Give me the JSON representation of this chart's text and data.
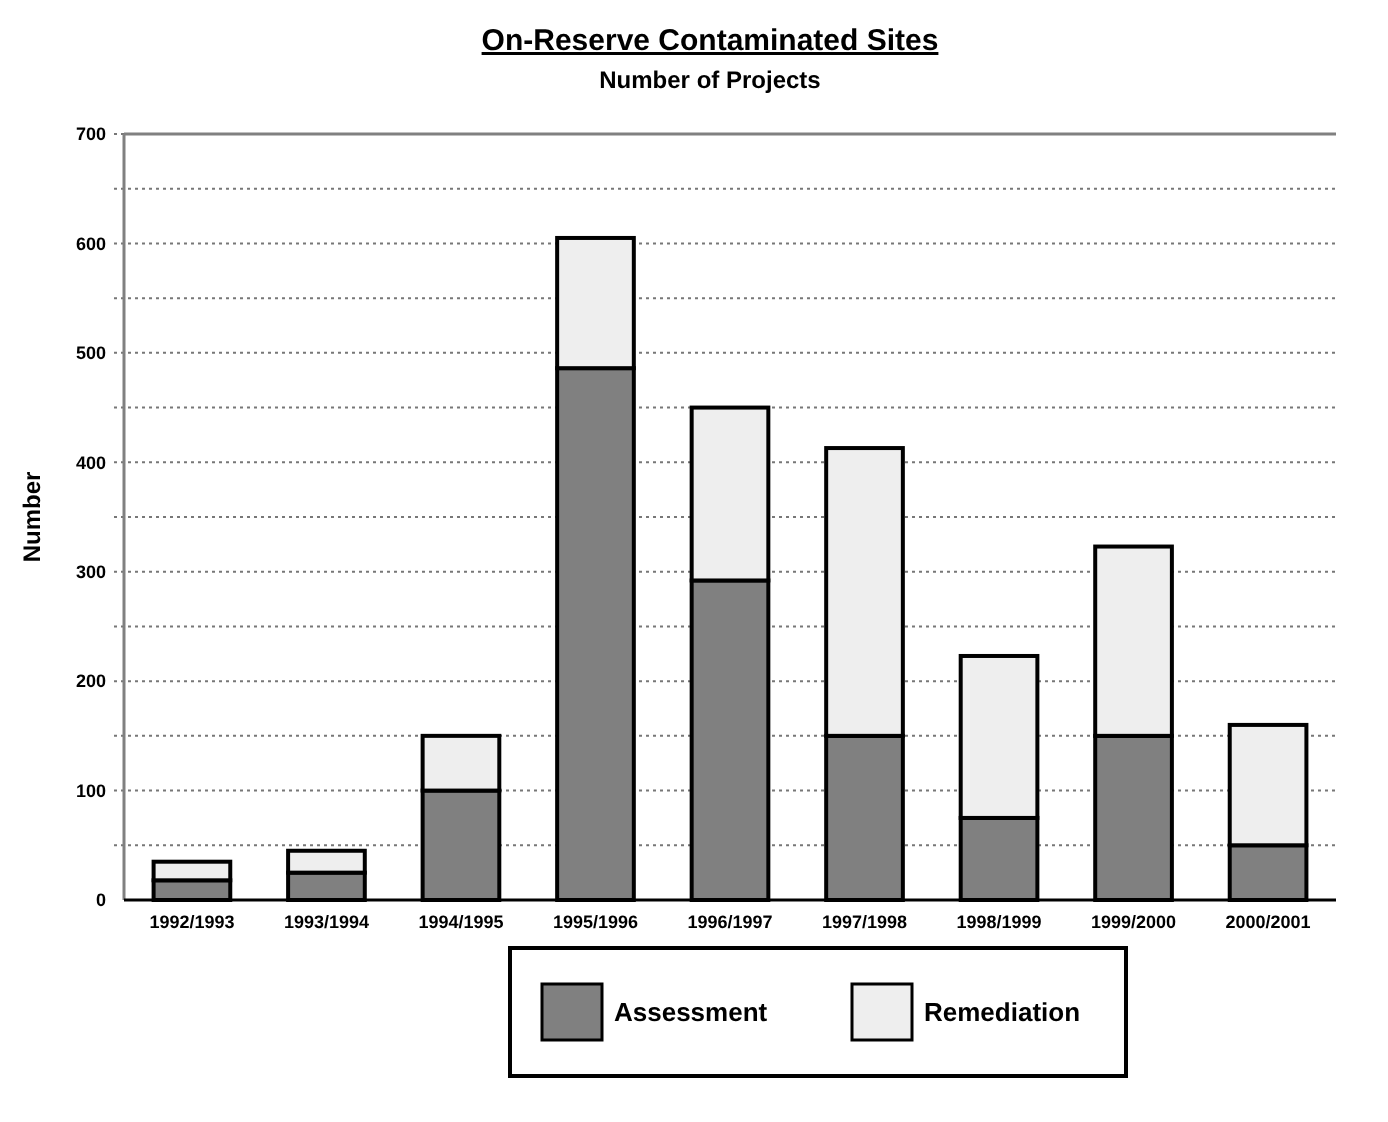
{
  "chart_data": {
    "type": "bar",
    "title": "On-Reserve Contaminated Sites",
    "subtitle": "Number of Projects",
    "ylabel": "Number",
    "categories": [
      "1992/1993",
      "1993/1994",
      "1994/1995",
      "1995/1996",
      "1996/1997",
      "1997/1998",
      "1998/1999",
      "1999/2000",
      "2000/2001"
    ],
    "series": [
      {
        "name": "Assessment",
        "color": "#808080",
        "values": [
          18,
          25,
          100,
          486,
          292,
          150,
          75,
          150,
          50
        ]
      },
      {
        "name": "Remediation",
        "color": "#eeeeee",
        "values": [
          17,
          20,
          50,
          119,
          158,
          263,
          148,
          173,
          110
        ]
      }
    ],
    "stacked": true,
    "ylim": [
      0,
      700
    ],
    "yticks": [
      0,
      {
        "value": 50,
        "label": null
      },
      100,
      {
        "value": 150,
        "label": null
      },
      200,
      {
        "value": 250,
        "label": null
      },
      300,
      {
        "value": 350,
        "label": null
      },
      400,
      {
        "value": 450,
        "label": null
      },
      500,
      {
        "value": 550,
        "label": null
      },
      600,
      {
        "value": 650,
        "label": null
      },
      700
    ],
    "grid": "y",
    "legend": "bottom"
  }
}
